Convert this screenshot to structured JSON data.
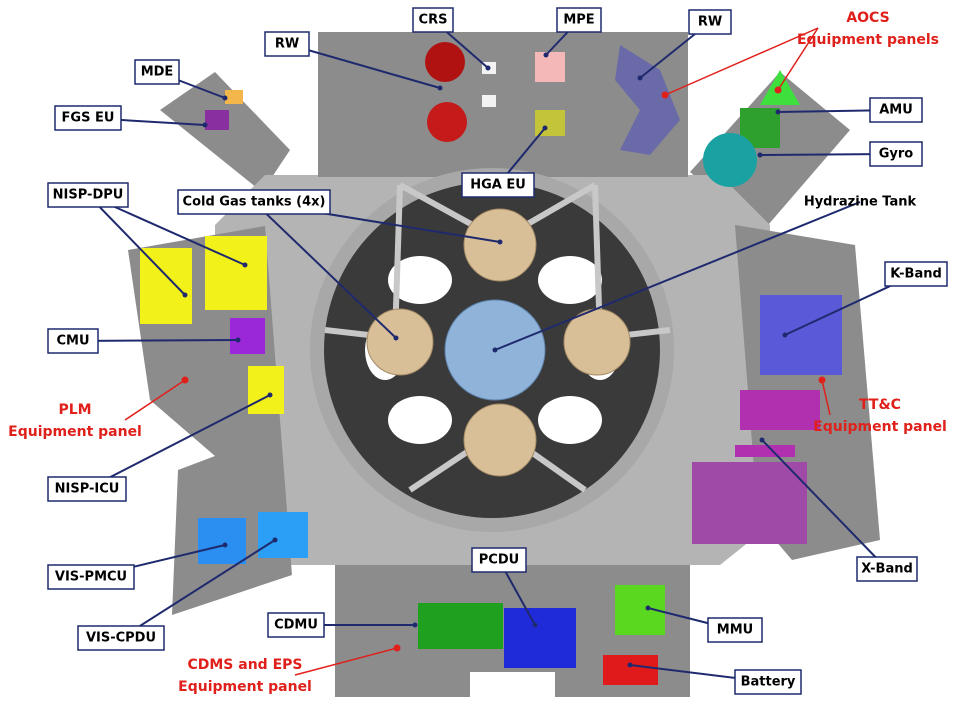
{
  "labels": [
    "RW",
    "CRS",
    "MPE",
    "RW",
    "MDE",
    "FGS EU",
    "AMU",
    "Gyro",
    "HGA EU",
    "Cold Gas tanks (4x)",
    "Hydrazine Tank",
    "NISP-DPU",
    "K-Band",
    "CMU",
    "NISP-ICU",
    "X-Band",
    "VIS-PMCU",
    "PCDU",
    "CDMU",
    "MMU",
    "VIS-CPDU",
    "Battery"
  ],
  "panel_labels": [
    {
      "lines": [
        "AOCS",
        "Equipment panels"
      ]
    },
    {
      "lines": [
        "PLM",
        "Equipment panel"
      ]
    },
    {
      "lines": [
        "TT&C",
        "Equipment panel"
      ]
    },
    {
      "lines": [
        "CDMS and EPS",
        "Equipment panel"
      ]
    }
  ]
}
